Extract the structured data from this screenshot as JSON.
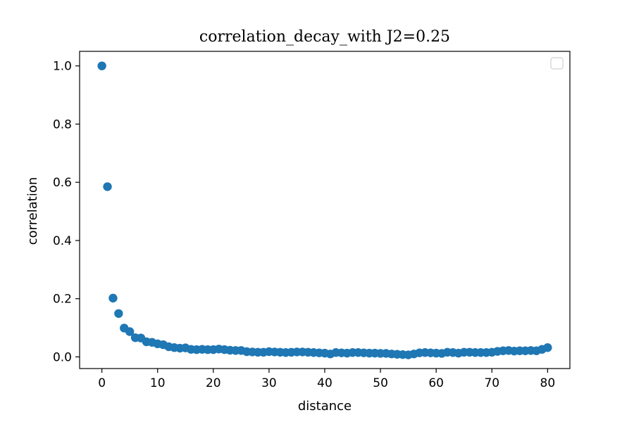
{
  "chart_data": {
    "type": "scatter",
    "title": "correlation_decay_with J2=0.25",
    "xlabel": "distance",
    "ylabel": "correlation",
    "xlim": [
      -4,
      84
    ],
    "ylim": [
      -0.04,
      1.05
    ],
    "xticks": [
      0,
      10,
      20,
      30,
      40,
      50,
      60,
      70,
      80
    ],
    "yticks": [
      0.0,
      0.2,
      0.4,
      0.6,
      0.8,
      1.0
    ],
    "xtick_labels": [
      "0",
      "10",
      "20",
      "30",
      "40",
      "50",
      "60",
      "70",
      "80"
    ],
    "ytick_labels": [
      "0.0",
      "0.2",
      "0.4",
      "0.6",
      "0.8",
      "1.0"
    ],
    "grid": false,
    "legend": "top-right",
    "color": "#1f77b4",
    "series": [
      {
        "x": [
          0,
          1,
          2,
          3,
          4,
          5,
          6,
          7,
          8,
          9,
          10,
          11,
          12,
          13,
          14,
          15,
          16,
          17,
          18,
          19,
          20,
          21,
          22,
          23,
          24,
          25,
          26,
          27,
          28,
          29,
          30,
          31,
          32,
          33,
          34,
          35,
          36,
          37,
          38,
          39,
          40,
          41,
          42,
          43,
          44,
          45,
          46,
          47,
          48,
          49,
          50,
          51,
          52,
          53,
          54,
          55,
          56,
          57,
          58,
          59,
          60,
          61,
          62,
          63,
          64,
          65,
          66,
          67,
          68,
          69,
          70,
          71,
          72,
          73,
          74,
          75,
          76,
          77,
          78,
          79,
          80
        ],
        "y": [
          1.0,
          0.585,
          0.202,
          0.149,
          0.099,
          0.087,
          0.066,
          0.065,
          0.052,
          0.05,
          0.045,
          0.042,
          0.035,
          0.032,
          0.03,
          0.031,
          0.026,
          0.025,
          0.026,
          0.025,
          0.025,
          0.027,
          0.025,
          0.023,
          0.022,
          0.022,
          0.018,
          0.017,
          0.016,
          0.016,
          0.018,
          0.017,
          0.016,
          0.015,
          0.016,
          0.017,
          0.017,
          0.016,
          0.015,
          0.014,
          0.013,
          0.01,
          0.015,
          0.014,
          0.013,
          0.015,
          0.015,
          0.014,
          0.013,
          0.013,
          0.012,
          0.012,
          0.01,
          0.009,
          0.008,
          0.007,
          0.01,
          0.014,
          0.015,
          0.014,
          0.013,
          0.012,
          0.016,
          0.015,
          0.013,
          0.016,
          0.016,
          0.015,
          0.015,
          0.015,
          0.016,
          0.019,
          0.021,
          0.022,
          0.02,
          0.021,
          0.021,
          0.022,
          0.021,
          0.026,
          0.032
        ]
      }
    ]
  }
}
